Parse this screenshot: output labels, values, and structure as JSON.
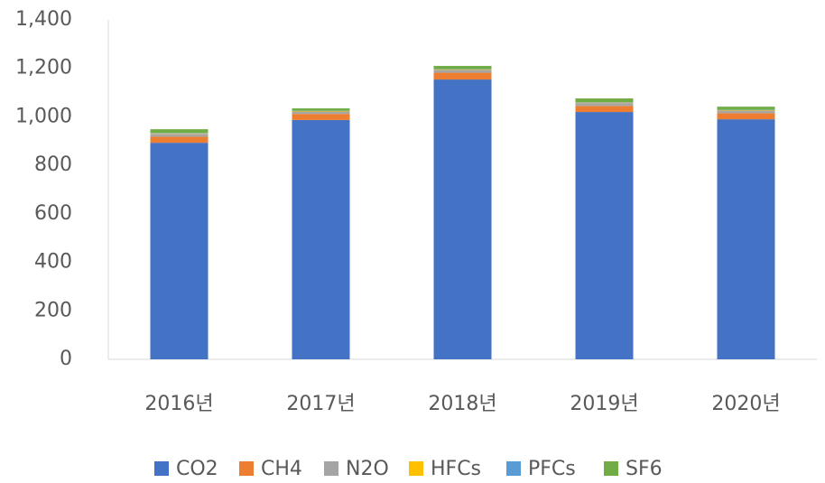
{
  "chart_data": {
    "type": "stacked_bar",
    "categories": [
      "2016년",
      "2017년",
      "2018년",
      "2019년",
      "2020년"
    ],
    "series": [
      {
        "name": "CO2",
        "color": "#4472c4",
        "values": [
          893,
          987,
          1154,
          1020,
          990
        ]
      },
      {
        "name": "CH4",
        "color": "#ed7d31",
        "values": [
          25,
          25,
          28,
          25,
          25
        ]
      },
      {
        "name": "N2O",
        "color": "#a5a5a5",
        "values": [
          12,
          10,
          12,
          12,
          11
        ]
      },
      {
        "name": "HFCs",
        "color": "#ffc000",
        "values": [
          2,
          2,
          2,
          2,
          2
        ]
      },
      {
        "name": "PFCs",
        "color": "#5b9bd5",
        "values": [
          2,
          1,
          1,
          2,
          1
        ]
      },
      {
        "name": "SF6",
        "color": "#70ad47",
        "values": [
          15,
          10,
          13,
          15,
          13
        ]
      }
    ],
    "ylim": [
      0,
      1400
    ],
    "yticks": [
      0,
      200,
      400,
      600,
      800,
      {
        "value": 1000,
        "label": "1,000"
      },
      {
        "value": 1200,
        "label": "1,200"
      },
      {
        "value": 1400,
        "label": "1,400"
      }
    ],
    "grid": false,
    "legend": "bottom"
  }
}
